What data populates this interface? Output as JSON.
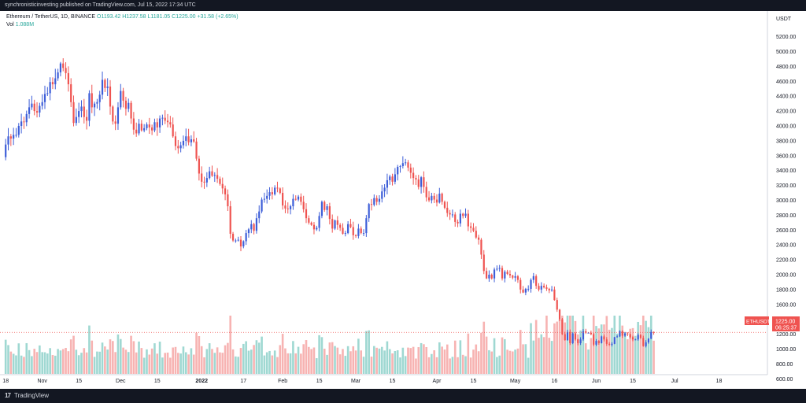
{
  "header": {
    "published_text": "synchronisticinvesting published on TradingView.com, Jul 15, 2022 17:34 UTC"
  },
  "legend": {
    "symbol": "Ethereum / TetherUS, 1D, BINANCE",
    "ohlc": "O1193.42  H1237.58  L1181.05  C1225.00  +31.58 (+2.65%)",
    "vol_label": "Vol",
    "vol_value": "1.088M"
  },
  "footer": {
    "logo_mark": "17",
    "brand": "TradingView"
  },
  "colors": {
    "up": "#3d5ed8",
    "down": "#ef5350",
    "vol_up": "#9fd8d2",
    "vol_down": "#f7b3b2",
    "bg": "#ffffff",
    "frame": "#131722",
    "price_line": "#ef5350"
  },
  "chart_data": {
    "type": "candlestick",
    "symbol": "ETHUSDT",
    "currency": "USDT",
    "last_price_label": "1225.00",
    "countdown_label": "06:25:37",
    "symbol_tag": "ETHUSDT",
    "y_ticks": [
      600,
      800,
      1000,
      1200,
      1400,
      1600,
      1800,
      2000,
      2200,
      2400,
      2600,
      2800,
      3000,
      3200,
      3400,
      3600,
      3800,
      4000,
      4200,
      4400,
      4600,
      4800,
      5000,
      5200
    ],
    "ylim": [
      400,
      5300
    ],
    "x_ticks": [
      {
        "label": "18",
        "days": 0
      },
      {
        "label": "Nov",
        "days": 14
      },
      {
        "label": "15",
        "days": 28
      },
      {
        "label": "Dec",
        "days": 44
      },
      {
        "label": "15",
        "days": 58
      },
      {
        "label": "2022",
        "days": 75
      },
      {
        "label": "17",
        "days": 91
      },
      {
        "label": "Feb",
        "days": 106
      },
      {
        "label": "15",
        "days": 120
      },
      {
        "label": "Mar",
        "days": 134
      },
      {
        "label": "15",
        "days": 148
      },
      {
        "label": "Apr",
        "days": 165
      },
      {
        "label": "15",
        "days": 179
      },
      {
        "label": "May",
        "days": 195
      },
      {
        "label": "16",
        "days": 210
      },
      {
        "label": "Jun",
        "days": 226
      },
      {
        "label": "15",
        "days": 240
      },
      {
        "label": "Jul",
        "days": 256
      },
      {
        "label": "18",
        "days": 273
      }
    ],
    "start_date": "2021-10-14",
    "volume_max": 3.2,
    "closes": [
      3750,
      3860,
      3830,
      3880,
      3880,
      4000,
      4060,
      4050,
      4160,
      4250,
      4300,
      4200,
      4180,
      4270,
      4320,
      4430,
      4440,
      4590,
      4560,
      4640,
      4720,
      4840,
      4780,
      4710,
      4560,
      4320,
      4040,
      4120,
      4200,
      4260,
      4120,
      4070,
      4440,
      4250,
      4300,
      4320,
      4420,
      4620,
      4510,
      4530,
      4260,
      4060,
      4030,
      4250,
      4470,
      4340,
      4230,
      4310,
      4100,
      3950,
      3900,
      4030,
      3940,
      3970,
      4020,
      3980,
      3940,
      4050,
      3980,
      4100,
      4110,
      4070,
      4050,
      4020,
      3860,
      3730,
      3700,
      3740,
      3800,
      3860,
      3780,
      3820,
      3790,
      3560,
      3360,
      3250,
      3240,
      3300,
      3390,
      3330,
      3340,
      3290,
      3220,
      3160,
      3080,
      2920,
      2550,
      2460,
      2460,
      2470,
      2380,
      2450,
      2560,
      2610,
      2680,
      2590,
      2760,
      2850,
      3010,
      3020,
      3060,
      3110,
      3080,
      3170,
      3160,
      3100,
      2930,
      2890,
      2880,
      2920,
      3020,
      3010,
      3050,
      2980,
      2880,
      2760,
      2700,
      2670,
      2610,
      2630,
      2790,
      2980,
      2870,
      2920,
      2750,
      2620,
      2730,
      2670,
      2630,
      2550,
      2560,
      2680,
      2640,
      2530,
      2520,
      2620,
      2560,
      2560,
      2760,
      2950,
      2940,
      3030,
      2980,
      3020,
      3120,
      3170,
      3270,
      3320,
      3250,
      3350,
      3450,
      3460,
      3500,
      3510,
      3440,
      3370,
      3300,
      3280,
      3180,
      3310,
      3180,
      3040,
      3000,
      3060,
      3010,
      2970,
      3090,
      2980,
      2900,
      2830,
      2810,
      2810,
      2710,
      2690,
      2820,
      2790,
      2820,
      2650,
      2630,
      2590,
      2500,
      2470,
      2270,
      2050,
      1950,
      2000,
      1950,
      2070,
      2080,
      2090,
      1950,
      2040,
      2010,
      1990,
      1960,
      1980,
      1930,
      1800,
      1760,
      1810,
      1810,
      1930,
      1980,
      1850,
      1800,
      1850,
      1830,
      1810,
      1790,
      1800,
      1660,
      1530,
      1400,
      1200,
      1120,
      1230,
      1080,
      1210,
      1130,
      1080,
      1130,
      1240,
      1220,
      1220,
      1200,
      1060,
      1110,
      1080,
      1170,
      1130,
      1070,
      1060,
      1070,
      1160,
      1170,
      1240,
      1180,
      1210,
      1200,
      1160,
      1130,
      1130,
      1190,
      1150,
      1040,
      1090,
      1140,
      1230,
      1225
    ]
  }
}
